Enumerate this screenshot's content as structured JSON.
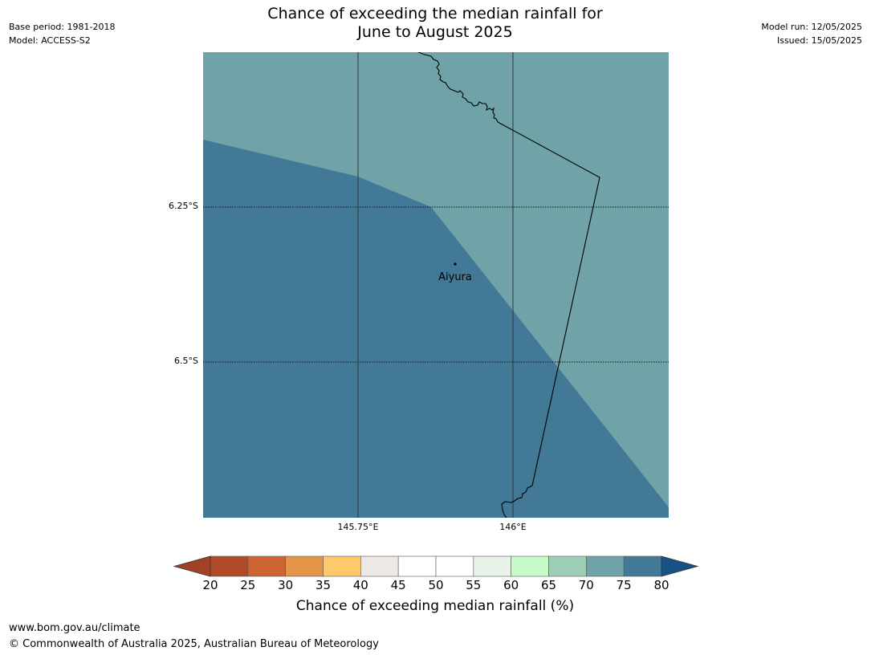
{
  "title": {
    "line1": "Chance of exceeding the median rainfall for",
    "line2": "June to August 2025"
  },
  "meta": {
    "base_period": "Base period: 1981-2018",
    "model": "Model: ACCESS-S2",
    "model_run": "Model run: 12/05/2025",
    "issued": "Issued: 15/05/2025"
  },
  "map": {
    "place_name": "Aiyura",
    "lat_labels": [
      "6.25°S",
      "6.5°S"
    ],
    "lon_labels": [
      "145.75°E",
      "146°E"
    ],
    "region_colors": {
      "probability_70_75": "#6fa3a7",
      "probability_75_80": "#427997"
    },
    "grid_color": "#2b3a40",
    "coastline_color": "#000000"
  },
  "colorbar": {
    "ticks": [
      "20",
      "25",
      "30",
      "35",
      "40",
      "45",
      "50",
      "55",
      "60",
      "65",
      "70",
      "75",
      "80"
    ],
    "colors": [
      "#b14a27",
      "#cd6433",
      "#e39446",
      "#fdc96a",
      "#ede9e6",
      "#ffffff",
      "#ffffff",
      "#e8f4e9",
      "#c8fac8",
      "#9ecfb6",
      "#6fa3a7",
      "#427997"
    ],
    "under_color": "#a14128",
    "over_color": "#185284",
    "label": "Chance of exceeding median rainfall (%)"
  },
  "footer": {
    "url": "www.bom.gov.au/climate",
    "copyright": "© Commonwealth of Australia 2025, Australian Bureau of Meteorology"
  }
}
